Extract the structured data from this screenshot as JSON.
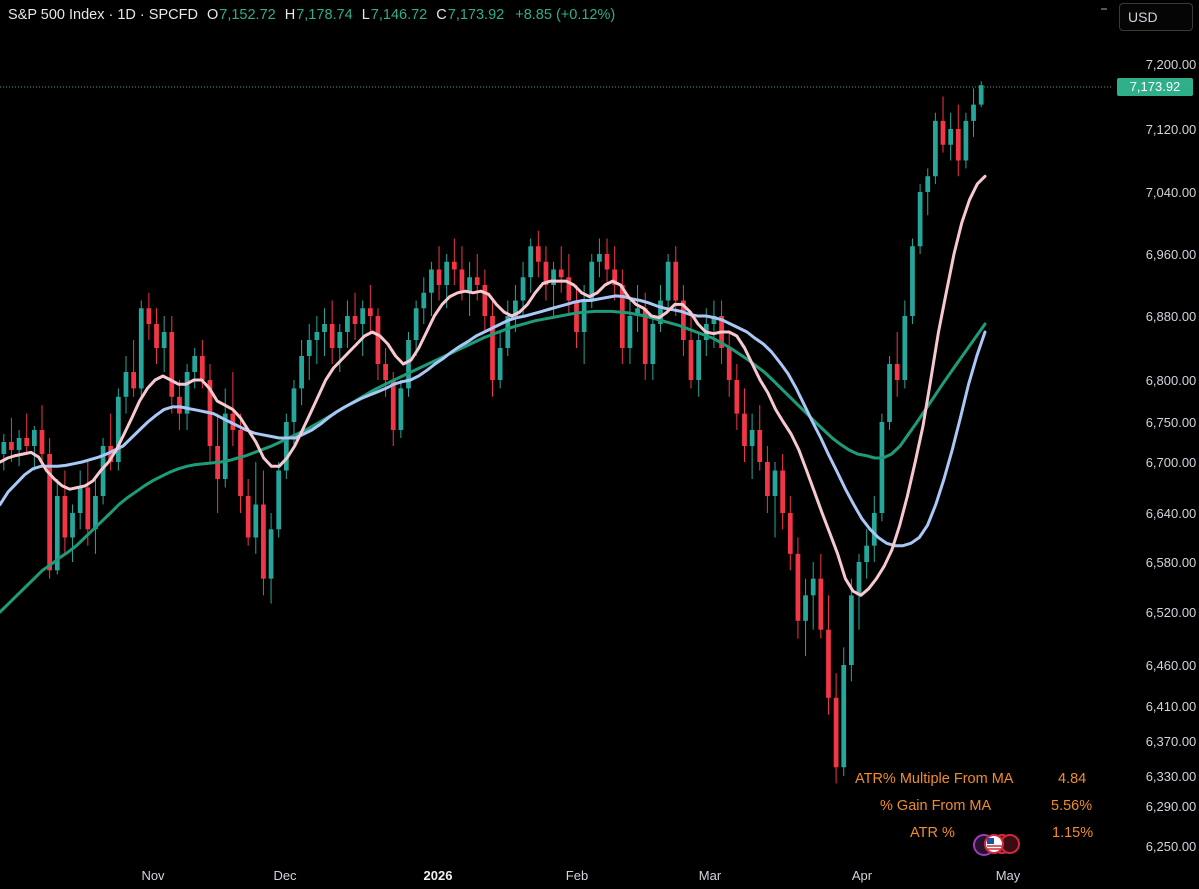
{
  "header": {
    "title": "S&P 500 Index · 1D · SPCFD",
    "open_key": "O",
    "open": "7,152.72",
    "high_key": "H",
    "high": "7,178.74",
    "low_key": "L",
    "low": "7,146.72",
    "close_key": "C",
    "close": "7,173.92",
    "change": "+8.85 (+0.12%)"
  },
  "currency_button": "USD",
  "info_table": {
    "rows": [
      {
        "label": "ATR% Multiple From MA",
        "value": "4.84"
      },
      {
        "label": "% Gain From MA",
        "value": "5.56%"
      },
      {
        "label": "ATR %",
        "value": "1.15%"
      }
    ]
  },
  "colors": {
    "up": "#26a69a",
    "down": "#f23645",
    "ma_fast": "#f8c8d0",
    "ma_mid": "#a9c8f5",
    "ma_slow": "#1e9b78",
    "label_orange": "#f28c28",
    "last_price": "#2fae8a"
  },
  "chart_data": {
    "type": "candlestick",
    "title": "S&P 500 Index · 1D · SPCFD",
    "last_price": "7,173.92",
    "y_ticks": [
      "7,200.00",
      "7,120.00",
      "7,040.00",
      "6,960.00",
      "6,880.00",
      "6,800.00",
      "6,750.00",
      "6,700.00",
      "6,640.00",
      "6,580.00",
      "6,520.00",
      "6,460.00",
      "6,410.00",
      "6,370.00",
      "6,330.00",
      "6,290.00",
      "6,250.00"
    ],
    "x_ticks": [
      "Nov",
      "Dec",
      "2026",
      "Feb",
      "Mar",
      "Apr",
      "May"
    ],
    "x_ticks_bold": [
      "2026"
    ],
    "candles": [
      {
        "o": 6710,
        "h": 6735,
        "l": 6690,
        "c": 6725
      },
      {
        "o": 6725,
        "h": 6755,
        "l": 6700,
        "c": 6715
      },
      {
        "o": 6715,
        "h": 6740,
        "l": 6695,
        "c": 6730
      },
      {
        "o": 6730,
        "h": 6760,
        "l": 6710,
        "c": 6720
      },
      {
        "o": 6720,
        "h": 6745,
        "l": 6690,
        "c": 6740
      },
      {
        "o": 6740,
        "h": 6770,
        "l": 6700,
        "c": 6710
      },
      {
        "o": 6710,
        "h": 6730,
        "l": 6560,
        "c": 6570
      },
      {
        "o": 6570,
        "h": 6680,
        "l": 6565,
        "c": 6660
      },
      {
        "o": 6660,
        "h": 6690,
        "l": 6590,
        "c": 6610
      },
      {
        "o": 6610,
        "h": 6650,
        "l": 6580,
        "c": 6640
      },
      {
        "o": 6640,
        "h": 6690,
        "l": 6620,
        "c": 6670
      },
      {
        "o": 6670,
        "h": 6700,
        "l": 6600,
        "c": 6620
      },
      {
        "o": 6620,
        "h": 6680,
        "l": 6590,
        "c": 6660
      },
      {
        "o": 6660,
        "h": 6730,
        "l": 6650,
        "c": 6720
      },
      {
        "o": 6720,
        "h": 6760,
        "l": 6690,
        "c": 6700
      },
      {
        "o": 6700,
        "h": 6790,
        "l": 6690,
        "c": 6780
      },
      {
        "o": 6780,
        "h": 6830,
        "l": 6760,
        "c": 6810
      },
      {
        "o": 6810,
        "h": 6850,
        "l": 6780,
        "c": 6790
      },
      {
        "o": 6790,
        "h": 6900,
        "l": 6780,
        "c": 6890
      },
      {
        "o": 6890,
        "h": 6910,
        "l": 6850,
        "c": 6870
      },
      {
        "o": 6870,
        "h": 6890,
        "l": 6820,
        "c": 6840
      },
      {
        "o": 6840,
        "h": 6880,
        "l": 6810,
        "c": 6860
      },
      {
        "o": 6860,
        "h": 6880,
        "l": 6760,
        "c": 6780
      },
      {
        "o": 6780,
        "h": 6800,
        "l": 6740,
        "c": 6760
      },
      {
        "o": 6760,
        "h": 6820,
        "l": 6740,
        "c": 6810
      },
      {
        "o": 6810,
        "h": 6840,
        "l": 6790,
        "c": 6830
      },
      {
        "o": 6830,
        "h": 6850,
        "l": 6790,
        "c": 6800
      },
      {
        "o": 6800,
        "h": 6820,
        "l": 6700,
        "c": 6720
      },
      {
        "o": 6720,
        "h": 6760,
        "l": 6640,
        "c": 6680
      },
      {
        "o": 6680,
        "h": 6790,
        "l": 6670,
        "c": 6760
      },
      {
        "o": 6760,
        "h": 6810,
        "l": 6720,
        "c": 6740
      },
      {
        "o": 6740,
        "h": 6760,
        "l": 6640,
        "c": 6660
      },
      {
        "o": 6660,
        "h": 6680,
        "l": 6600,
        "c": 6610
      },
      {
        "o": 6610,
        "h": 6700,
        "l": 6590,
        "c": 6650
      },
      {
        "o": 6650,
        "h": 6690,
        "l": 6540,
        "c": 6560
      },
      {
        "o": 6560,
        "h": 6640,
        "l": 6530,
        "c": 6620
      },
      {
        "o": 6620,
        "h": 6700,
        "l": 6610,
        "c": 6690
      },
      {
        "o": 6690,
        "h": 6760,
        "l": 6680,
        "c": 6750
      },
      {
        "o": 6750,
        "h": 6800,
        "l": 6720,
        "c": 6790
      },
      {
        "o": 6790,
        "h": 6850,
        "l": 6770,
        "c": 6830
      },
      {
        "o": 6830,
        "h": 6870,
        "l": 6800,
        "c": 6850
      },
      {
        "o": 6850,
        "h": 6880,
        "l": 6820,
        "c": 6860
      },
      {
        "o": 6860,
        "h": 6890,
        "l": 6830,
        "c": 6870
      },
      {
        "o": 6870,
        "h": 6900,
        "l": 6820,
        "c": 6840
      },
      {
        "o": 6840,
        "h": 6870,
        "l": 6810,
        "c": 6860
      },
      {
        "o": 6860,
        "h": 6900,
        "l": 6840,
        "c": 6880
      },
      {
        "o": 6880,
        "h": 6910,
        "l": 6850,
        "c": 6870
      },
      {
        "o": 6870,
        "h": 6900,
        "l": 6830,
        "c": 6890
      },
      {
        "o": 6890,
        "h": 6920,
        "l": 6860,
        "c": 6880
      },
      {
        "o": 6880,
        "h": 6890,
        "l": 6800,
        "c": 6820
      },
      {
        "o": 6820,
        "h": 6840,
        "l": 6780,
        "c": 6800
      },
      {
        "o": 6800,
        "h": 6810,
        "l": 6720,
        "c": 6740
      },
      {
        "o": 6740,
        "h": 6800,
        "l": 6730,
        "c": 6790
      },
      {
        "o": 6790,
        "h": 6860,
        "l": 6780,
        "c": 6850
      },
      {
        "o": 6850,
        "h": 6900,
        "l": 6830,
        "c": 6890
      },
      {
        "o": 6890,
        "h": 6930,
        "l": 6870,
        "c": 6910
      },
      {
        "o": 6910,
        "h": 6950,
        "l": 6880,
        "c": 6940
      },
      {
        "o": 6940,
        "h": 6970,
        "l": 6900,
        "c": 6920
      },
      {
        "o": 6920,
        "h": 6960,
        "l": 6890,
        "c": 6950
      },
      {
        "o": 6950,
        "h": 6980,
        "l": 6920,
        "c": 6940
      },
      {
        "o": 6940,
        "h": 6970,
        "l": 6900,
        "c": 6910
      },
      {
        "o": 6910,
        "h": 6950,
        "l": 6880,
        "c": 6930
      },
      {
        "o": 6930,
        "h": 6960,
        "l": 6900,
        "c": 6920
      },
      {
        "o": 6920,
        "h": 6940,
        "l": 6860,
        "c": 6880
      },
      {
        "o": 6880,
        "h": 6900,
        "l": 6780,
        "c": 6800
      },
      {
        "o": 6800,
        "h": 6860,
        "l": 6790,
        "c": 6840
      },
      {
        "o": 6840,
        "h": 6900,
        "l": 6830,
        "c": 6880
      },
      {
        "o": 6880,
        "h": 6920,
        "l": 6860,
        "c": 6900
      },
      {
        "o": 6900,
        "h": 6950,
        "l": 6880,
        "c": 6930
      },
      {
        "o": 6930,
        "h": 6980,
        "l": 6910,
        "c": 6970
      },
      {
        "o": 6970,
        "h": 6990,
        "l": 6930,
        "c": 6950
      },
      {
        "o": 6950,
        "h": 6970,
        "l": 6900,
        "c": 6920
      },
      {
        "o": 6920,
        "h": 6950,
        "l": 6880,
        "c": 6940
      },
      {
        "o": 6940,
        "h": 6970,
        "l": 6910,
        "c": 6930
      },
      {
        "o": 6930,
        "h": 6960,
        "l": 6880,
        "c": 6900
      },
      {
        "o": 6900,
        "h": 6920,
        "l": 6840,
        "c": 6860
      },
      {
        "o": 6860,
        "h": 6920,
        "l": 6820,
        "c": 6900
      },
      {
        "o": 6900,
        "h": 6960,
        "l": 6890,
        "c": 6950
      },
      {
        "o": 6950,
        "h": 6980,
        "l": 6930,
        "c": 6960
      },
      {
        "o": 6960,
        "h": 6980,
        "l": 6920,
        "c": 6940
      },
      {
        "o": 6940,
        "h": 6970,
        "l": 6900,
        "c": 6920
      },
      {
        "o": 6920,
        "h": 6940,
        "l": 6820,
        "c": 6840
      },
      {
        "o": 6840,
        "h": 6900,
        "l": 6820,
        "c": 6880
      },
      {
        "o": 6880,
        "h": 6920,
        "l": 6860,
        "c": 6890
      },
      {
        "o": 6890,
        "h": 6910,
        "l": 6800,
        "c": 6820
      },
      {
        "o": 6820,
        "h": 6880,
        "l": 6800,
        "c": 6870
      },
      {
        "o": 6870,
        "h": 6920,
        "l": 6860,
        "c": 6900
      },
      {
        "o": 6900,
        "h": 6960,
        "l": 6890,
        "c": 6950
      },
      {
        "o": 6950,
        "h": 6970,
        "l": 6880,
        "c": 6900
      },
      {
        "o": 6900,
        "h": 6920,
        "l": 6830,
        "c": 6850
      },
      {
        "o": 6850,
        "h": 6880,
        "l": 6790,
        "c": 6800
      },
      {
        "o": 6800,
        "h": 6860,
        "l": 6780,
        "c": 6850
      },
      {
        "o": 6850,
        "h": 6890,
        "l": 6830,
        "c": 6870
      },
      {
        "o": 6870,
        "h": 6900,
        "l": 6840,
        "c": 6880
      },
      {
        "o": 6880,
        "h": 6900,
        "l": 6820,
        "c": 6840
      },
      {
        "o": 6840,
        "h": 6860,
        "l": 6780,
        "c": 6800
      },
      {
        "o": 6800,
        "h": 6820,
        "l": 6740,
        "c": 6760
      },
      {
        "o": 6760,
        "h": 6790,
        "l": 6700,
        "c": 6720
      },
      {
        "o": 6720,
        "h": 6760,
        "l": 6680,
        "c": 6740
      },
      {
        "o": 6740,
        "h": 6770,
        "l": 6690,
        "c": 6700
      },
      {
        "o": 6700,
        "h": 6720,
        "l": 6640,
        "c": 6660
      },
      {
        "o": 6660,
        "h": 6700,
        "l": 6610,
        "c": 6690
      },
      {
        "o": 6690,
        "h": 6710,
        "l": 6620,
        "c": 6640
      },
      {
        "o": 6640,
        "h": 6660,
        "l": 6570,
        "c": 6590
      },
      {
        "o": 6590,
        "h": 6610,
        "l": 6490,
        "c": 6510
      },
      {
        "o": 6510,
        "h": 6560,
        "l": 6470,
        "c": 6540
      },
      {
        "o": 6540,
        "h": 6580,
        "l": 6500,
        "c": 6560
      },
      {
        "o": 6560,
        "h": 6590,
        "l": 6490,
        "c": 6500
      },
      {
        "o": 6500,
        "h": 6540,
        "l": 6400,
        "c": 6420
      },
      {
        "o": 6420,
        "h": 6450,
        "l": 6320,
        "c": 6340
      },
      {
        "o": 6340,
        "h": 6480,
        "l": 6330,
        "c": 6460
      },
      {
        "o": 6460,
        "h": 6560,
        "l": 6440,
        "c": 6540
      },
      {
        "o": 6540,
        "h": 6590,
        "l": 6500,
        "c": 6580
      },
      {
        "o": 6580,
        "h": 6620,
        "l": 6560,
        "c": 6600
      },
      {
        "o": 6600,
        "h": 6660,
        "l": 6580,
        "c": 6640
      },
      {
        "o": 6640,
        "h": 6760,
        "l": 6630,
        "c": 6750
      },
      {
        "o": 6750,
        "h": 6830,
        "l": 6740,
        "c": 6820
      },
      {
        "o": 6820,
        "h": 6860,
        "l": 6780,
        "c": 6800
      },
      {
        "o": 6800,
        "h": 6900,
        "l": 6790,
        "c": 6880
      },
      {
        "o": 6880,
        "h": 6980,
        "l": 6870,
        "c": 6970
      },
      {
        "o": 6970,
        "h": 7050,
        "l": 6960,
        "c": 7040
      },
      {
        "o": 7040,
        "h": 7070,
        "l": 7010,
        "c": 7060
      },
      {
        "o": 7060,
        "h": 7140,
        "l": 7050,
        "c": 7130
      },
      {
        "o": 7130,
        "h": 7160,
        "l": 7090,
        "c": 7100
      },
      {
        "o": 7100,
        "h": 7140,
        "l": 7080,
        "c": 7120
      },
      {
        "o": 7120,
        "h": 7150,
        "l": 7060,
        "c": 7080
      },
      {
        "o": 7080,
        "h": 7140,
        "l": 7070,
        "c": 7130
      },
      {
        "o": 7130,
        "h": 7170,
        "l": 7110,
        "c": 7150
      },
      {
        "o": 7150,
        "h": 7178.74,
        "l": 7146.72,
        "c": 7173.92
      }
    ],
    "ma_fast": [
      6700,
      6705,
      6708,
      6710,
      6712,
      6706,
      6690,
      6680,
      6672,
      6668,
      6670,
      6672,
      6678,
      6690,
      6700,
      6715,
      6735,
      6755,
      6775,
      6790,
      6800,
      6805,
      6800,
      6795,
      6795,
      6800,
      6800,
      6790,
      6775,
      6770,
      6765,
      6755,
      6740,
      6725,
      6705,
      6695,
      6695,
      6705,
      6720,
      6740,
      6760,
      6780,
      6800,
      6815,
      6825,
      6835,
      6845,
      6855,
      6860,
      6855,
      6845,
      6830,
      6820,
      6825,
      6840,
      6860,
      6880,
      6895,
      6905,
      6910,
      6912,
      6910,
      6912,
      6908,
      6895,
      6885,
      6880,
      6885,
      6895,
      6910,
      6922,
      6925,
      6925,
      6925,
      6920,
      6910,
      6905,
      6910,
      6920,
      6925,
      6920,
      6905,
      6895,
      6890,
      6880,
      6878,
      6885,
      6895,
      6895,
      6885,
      6870,
      6860,
      6858,
      6860,
      6860,
      6855,
      6840,
      6820,
      6800,
      6785,
      6765,
      6750,
      6735,
      6715,
      6690,
      6665,
      6640,
      6615,
      6590,
      6560,
      6545,
      6540,
      6548,
      6560,
      6575,
      6595,
      6625,
      6660,
      6700,
      6745,
      6800,
      6860,
      6910,
      6960,
      7000,
      7030,
      7050,
      7060
    ],
    "ma_mid": [
      6650,
      6665,
      6675,
      6685,
      6692,
      6695,
      6695,
      6695,
      6696,
      6698,
      6700,
      6703,
      6706,
      6710,
      6715,
      6720,
      6730,
      6740,
      6750,
      6758,
      6765,
      6768,
      6768,
      6766,
      6764,
      6762,
      6760,
      6755,
      6750,
      6745,
      6740,
      6736,
      6734,
      6732,
      6730,
      6730,
      6730,
      6735,
      6740,
      6747,
      6755,
      6762,
      6768,
      6773,
      6778,
      6782,
      6786,
      6790,
      6795,
      6798,
      6800,
      6805,
      6812,
      6820,
      6827,
      6835,
      6842,
      6848,
      6855,
      6860,
      6865,
      6870,
      6875,
      6878,
      6880,
      6883,
      6886,
      6889,
      6892,
      6895,
      6898,
      6900,
      6900,
      6902,
      6904,
      6906,
      6905,
      6902,
      6900,
      6897,
      6893,
      6890,
      6888,
      6886,
      6882,
      6880,
      6880,
      6878,
      6875,
      6870,
      6865,
      6860,
      6852,
      6845,
      6835,
      6822,
      6808,
      6790,
      6770,
      6750,
      6730,
      6708,
      6688,
      6668,
      6650,
      6633,
      6620,
      6610,
      6603,
      6600,
      6600,
      6603,
      6610,
      6625,
      6650,
      6680,
      6715,
      6755,
      6795,
      6830,
      6860
    ],
    "ma_slow": [
      6520,
      6530,
      6540,
      6550,
      6560,
      6570,
      6577,
      6585,
      6592,
      6600,
      6610,
      6620,
      6630,
      6640,
      6650,
      6658,
      6665,
      6672,
      6678,
      6683,
      6688,
      6692,
      6695,
      6697,
      6698,
      6699,
      6700,
      6702,
      6705,
      6708,
      6712,
      6716,
      6720,
      6725,
      6730,
      6735,
      6740,
      6746,
      6752,
      6758,
      6764,
      6770,
      6776,
      6782,
      6788,
      6793,
      6798,
      6803,
      6808,
      6813,
      6818,
      6823,
      6828,
      6833,
      6838,
      6843,
      6848,
      6853,
      6857,
      6861,
      6865,
      6868,
      6871,
      6874,
      6876,
      6878,
      6880,
      6882,
      6884,
      6885,
      6886,
      6886,
      6886,
      6885,
      6884,
      6882,
      6880,
      6877,
      6874,
      6871,
      6868,
      6864,
      6860,
      6856,
      6852,
      6846,
      6840,
      6833,
      6826,
      6818,
      6810,
      6800,
      6790,
      6780,
      6770,
      6760,
      6750,
      6740,
      6730,
      6722,
      6715,
      6710,
      6708,
      6705,
      6705,
      6710,
      6720,
      6735,
      6750,
      6765,
      6780,
      6795,
      6810,
      6825,
      6840,
      6855,
      6870
    ]
  }
}
